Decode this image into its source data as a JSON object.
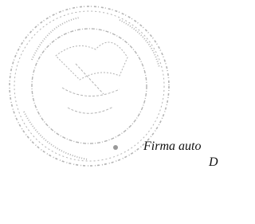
{
  "document": {
    "text_lines": [
      "Firma auto",
      "D"
    ]
  }
}
